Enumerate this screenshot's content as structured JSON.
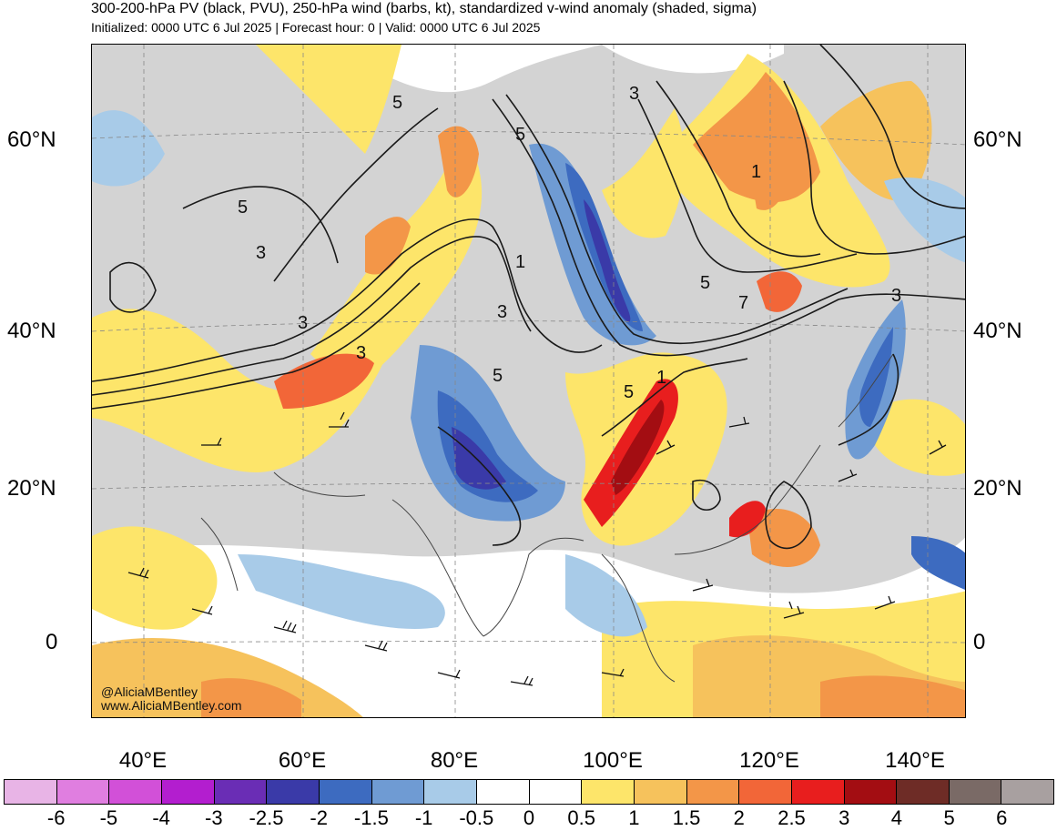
{
  "header": {
    "title": "300-200-hPa PV (black, PVU), 250-hPa wind (barbs, kt), standardized v-wind anomaly (shaded, sigma)",
    "subtitle": "Initialized: 0000 UTC 6 Jul 2025 | Forecast hour: 0 | Valid: 0000 UTC 6 Jul 2025"
  },
  "map": {
    "lat_labels": [
      "60°N",
      "40°N",
      "20°N",
      "0"
    ],
    "lon_labels": [
      "40°E",
      "60°E",
      "80°E",
      "100°E",
      "120°E",
      "140°E"
    ],
    "contour_labels": [
      "5",
      "5",
      "5",
      "3",
      "3",
      "1",
      "3",
      "3",
      "5",
      "1",
      "3",
      "5",
      "1",
      "5",
      "7",
      "3"
    ],
    "credit": [
      "@AliciaMBentley",
      "www.AliciaMBentley.com"
    ]
  },
  "colorbar": {
    "labels": [
      "-6",
      "-5",
      "-4",
      "-3",
      "-2.5",
      "-2",
      "-1.5",
      "-1",
      "-0.5",
      "0",
      "0.5",
      "1",
      "1.5",
      "2",
      "2.5",
      "3",
      "4",
      "5",
      "6"
    ],
    "colors": [
      "#e8b4e6",
      "#e07ee0",
      "#d250d8",
      "#b31ecf",
      "#6a2db5",
      "#3a3aa8",
      "#3d6bc0",
      "#6f9bd3",
      "#a8cbe8",
      "#ffffff",
      "#ffffff",
      "#fde56a",
      "#f6c25c",
      "#f39648",
      "#f26638",
      "#e81e1e",
      "#a30d12",
      "#6e2c26",
      "#7a6a66",
      "#a8a0a0"
    ]
  }
}
